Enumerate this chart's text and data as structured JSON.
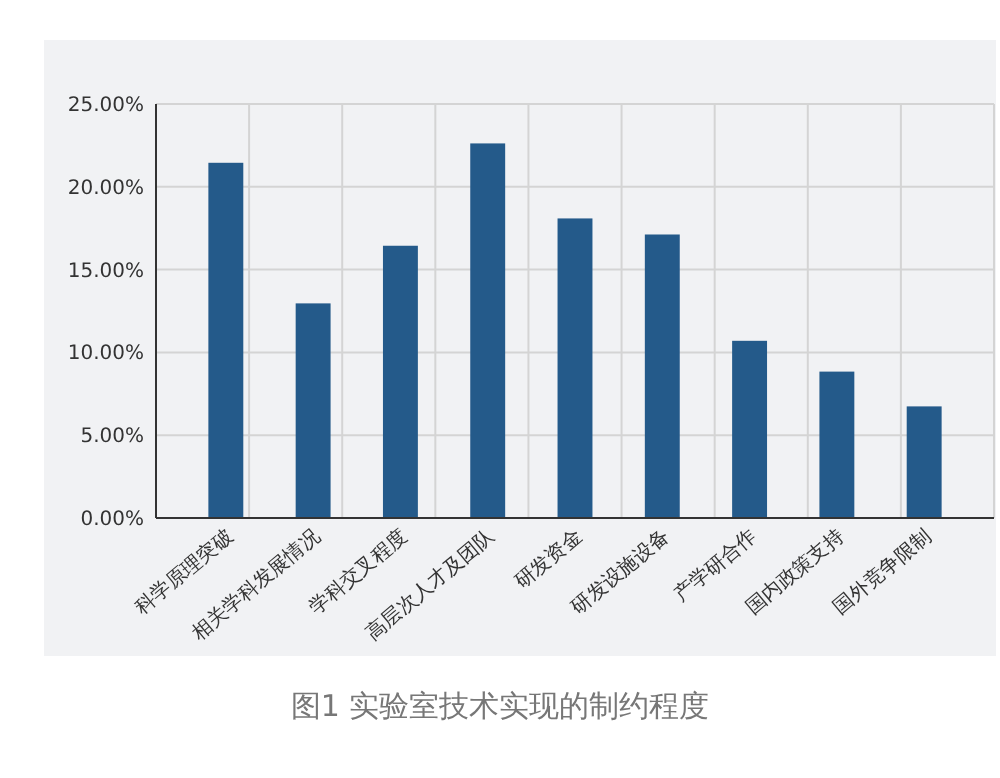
{
  "chart_data": {
    "type": "bar",
    "title": "图1 实验室技术实现的制约程度",
    "categories": [
      "科学原理突破",
      "相关学科发展情况",
      "学科交叉程度",
      "高层次人才及团队",
      "研发资金",
      "研发设施设备",
      "产学研合作",
      "国内政策支持",
      "国外竞争限制"
    ],
    "values": [
      21.45,
      12.96,
      16.44,
      22.62,
      18.09,
      17.12,
      10.7,
      8.84,
      6.74
    ],
    "color": "#245a8a",
    "ylim": [
      0,
      25
    ],
    "yticks": [
      {
        "value": 0,
        "label": "0.00%"
      },
      {
        "value": 5,
        "label": "5.00%"
      },
      {
        "value": 10,
        "label": "10.00%"
      },
      {
        "value": 15,
        "label": "15.00%"
      },
      {
        "value": 20,
        "label": "20.00%"
      },
      {
        "value": 25,
        "label": "25.00%"
      }
    ],
    "grid": true
  }
}
